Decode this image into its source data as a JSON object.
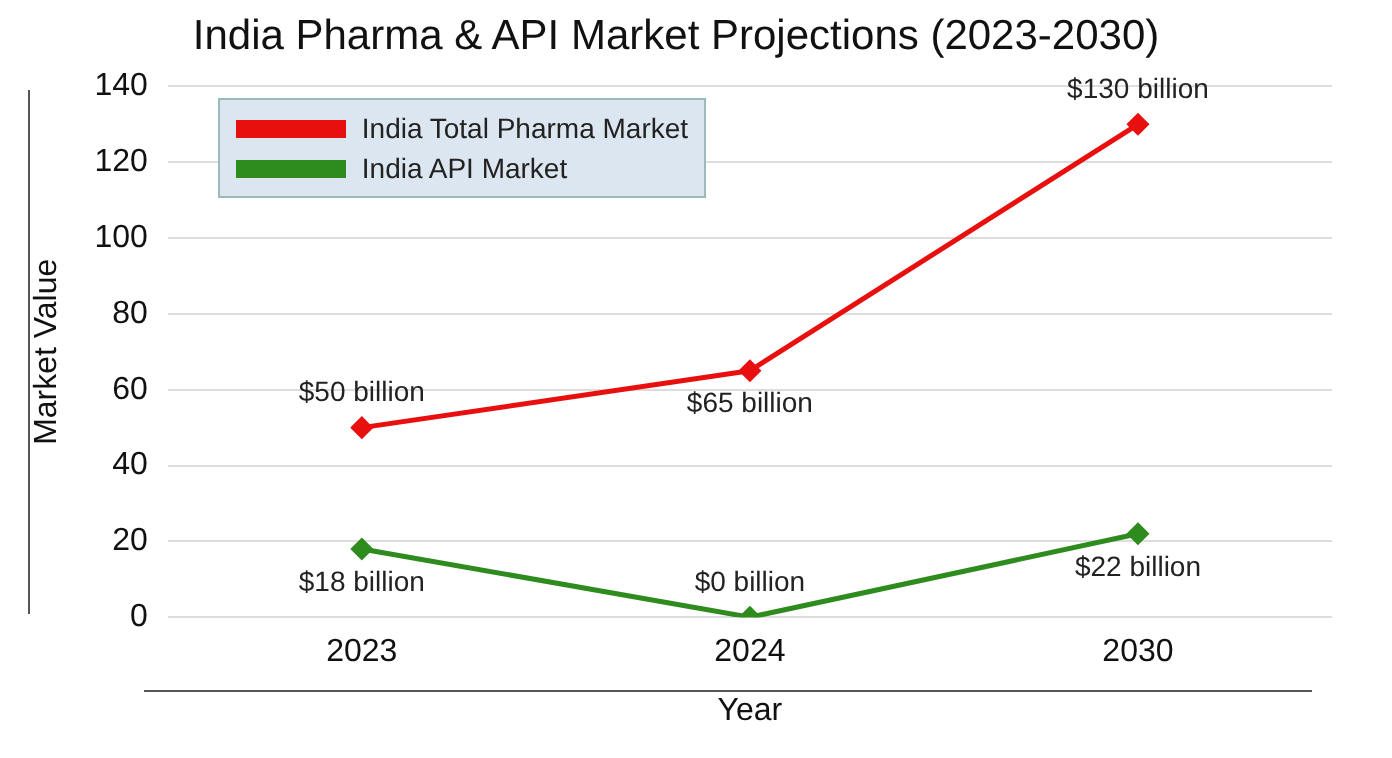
{
  "chart_data": {
    "type": "line",
    "title": "India Pharma & API Market Projections (2023-2030)",
    "xlabel": "Year",
    "ylabel": "Market Value",
    "categories": [
      "2023",
      "2024",
      "2030"
    ],
    "series": [
      {
        "name": "India Total Pharma Market",
        "color": "#e8100f",
        "values": [
          50,
          65,
          130
        ],
        "value_labels": [
          "$50 billion",
          "$65 billion",
          "$130 billion"
        ]
      },
      {
        "name": "India API Market",
        "color": "#2e8b1e",
        "values": [
          18,
          0,
          22
        ],
        "value_labels": [
          "$18 billion",
          "$0 billion",
          "$22 billion"
        ]
      }
    ],
    "ylim": [
      0,
      140
    ],
    "yticks": [
      0,
      20,
      40,
      60,
      80,
      100,
      120,
      140
    ],
    "grid": "y",
    "legend": "top left",
    "marker": "diamond",
    "line_style": "solid"
  }
}
